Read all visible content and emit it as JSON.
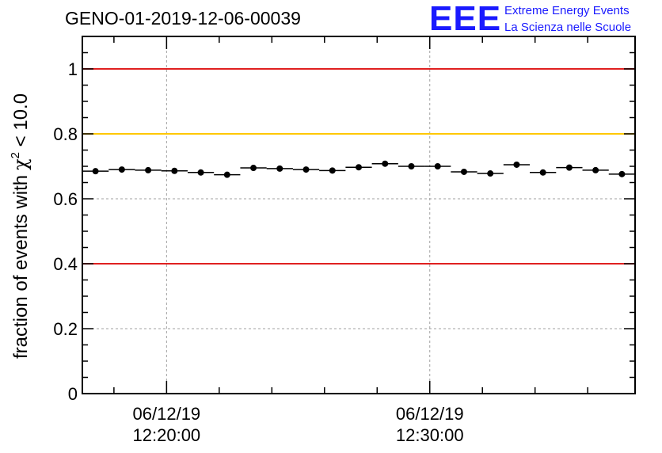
{
  "header": {
    "title": "GENO-01-2019-12-06-00039",
    "logo_text": "EEE",
    "logo_line1": "Extreme Energy Events",
    "logo_line2": "La Scienza nelle Scuole"
  },
  "colors": {
    "red_line": "#e02020",
    "yellow_line": "#ffc800",
    "grid": "#a0a0a0",
    "logo": "#1a1aff"
  },
  "chart_data": {
    "type": "scatter",
    "title": "GENO-01-2019-12-06-00039",
    "ylabel_prefix": "fraction of events with",
    "ylabel_symbol": "χ",
    "ylabel_exp": "2",
    "ylabel_suffix": " < 10.0",
    "ylim": [
      0,
      1.1
    ],
    "yticks": [
      0,
      0.2,
      0.4,
      0.6,
      0.8,
      1
    ],
    "ytick_labels": [
      "0",
      "0.2",
      "0.4",
      "0.6",
      "0.8",
      "1"
    ],
    "xlim_minutes": [
      -3.2,
      17.8
    ],
    "x_unit": "minutes after 12:20:00 on 06/12/19",
    "xticks": [
      {
        "minute": 0,
        "date": "06/12/19",
        "time": "12:20:00"
      },
      {
        "minute": 10,
        "date": "06/12/19",
        "time": "12:30:00"
      }
    ],
    "x_minor_step_minutes": 2,
    "grid": true,
    "reference_lines": [
      {
        "y": 1.0,
        "color": "red"
      },
      {
        "y": 0.8,
        "color": "yellow"
      },
      {
        "y": 0.4,
        "color": "red"
      }
    ],
    "bin_width_minutes": 1,
    "x": [
      -2.7,
      -1.7,
      -0.7,
      0.3,
      1.3,
      2.3,
      3.3,
      4.3,
      5.3,
      6.3,
      7.3,
      8.3,
      9.3,
      10.3,
      11.3,
      12.3,
      13.3,
      14.3,
      15.3,
      16.3,
      17.3
    ],
    "values": [
      0.685,
      0.69,
      0.688,
      0.686,
      0.681,
      0.674,
      0.695,
      0.693,
      0.69,
      0.687,
      0.697,
      0.708,
      0.7,
      0.7,
      0.683,
      0.678,
      0.705,
      0.681,
      0.696,
      0.688,
      0.676
    ]
  }
}
